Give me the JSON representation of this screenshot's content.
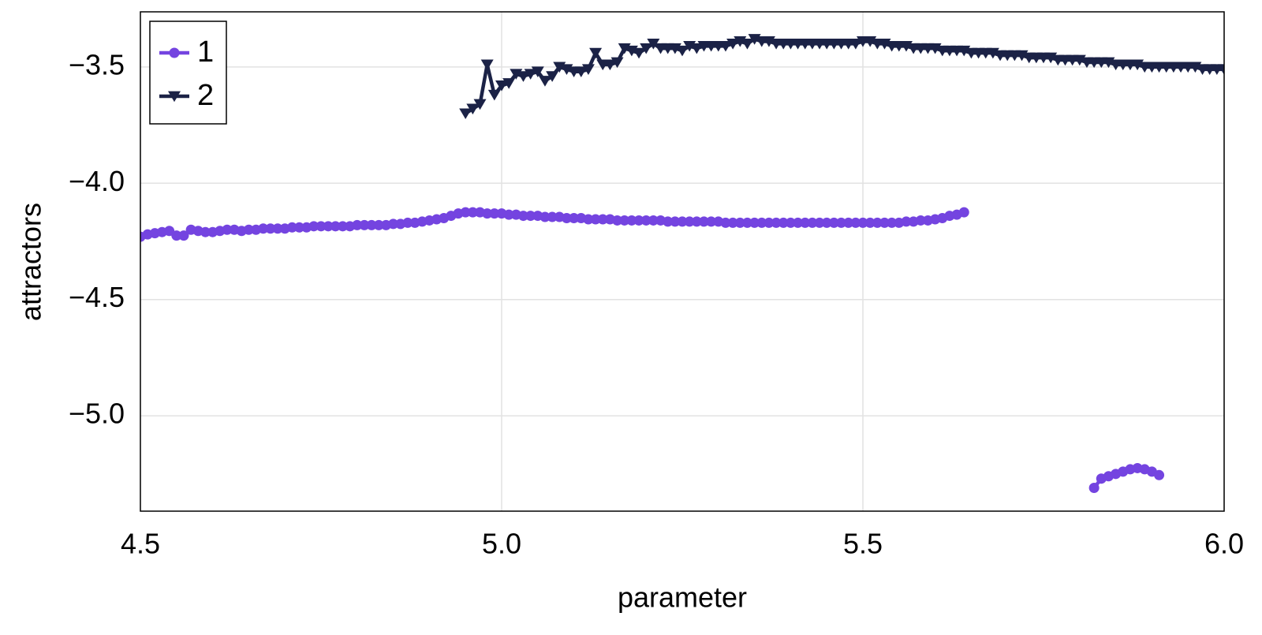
{
  "chart_data": {
    "type": "line",
    "x_label": "parameter",
    "y_label": "attractors",
    "x": [
      4.5,
      4.51,
      4.52,
      4.53,
      4.54,
      4.55,
      4.56,
      4.57,
      4.58,
      4.59,
      4.6,
      4.61,
      4.62,
      4.63,
      4.64,
      4.65,
      4.66,
      4.67,
      4.68,
      4.69,
      4.7,
      4.71,
      4.72,
      4.73,
      4.74,
      4.75,
      4.76,
      4.77,
      4.78,
      4.79,
      4.8,
      4.81,
      4.82,
      4.83,
      4.84,
      4.85,
      4.86,
      4.87,
      4.88,
      4.89,
      4.9,
      4.91,
      4.92,
      4.93,
      4.94,
      4.95,
      4.96,
      4.97,
      4.98,
      4.99,
      5.0,
      5.01,
      5.02,
      5.03,
      5.04,
      5.05,
      5.06,
      5.07,
      5.08,
      5.09,
      5.1,
      5.11,
      5.12,
      5.13,
      5.14,
      5.15,
      5.16,
      5.17,
      5.18,
      5.19,
      5.2,
      5.21,
      5.22,
      5.23,
      5.24,
      5.25,
      5.26,
      5.27,
      5.28,
      5.29,
      5.3,
      5.31,
      5.32,
      5.33,
      5.34,
      5.35,
      5.36,
      5.37,
      5.38,
      5.39,
      5.4,
      5.41,
      5.42,
      5.43,
      5.44,
      5.45,
      5.46,
      5.47,
      5.48,
      5.49,
      5.5,
      5.51,
      5.52,
      5.53,
      5.54,
      5.55,
      5.56,
      5.57,
      5.58,
      5.59,
      5.6,
      5.61,
      5.62,
      5.63,
      5.64,
      5.65,
      5.66,
      5.67,
      5.68,
      5.69,
      5.7,
      5.71,
      5.72,
      5.73,
      5.74,
      5.75,
      5.76,
      5.77,
      5.78,
      5.79,
      5.8,
      5.81,
      5.82,
      5.83,
      5.84,
      5.85,
      5.86,
      5.87,
      5.88,
      5.89,
      5.9,
      5.91,
      5.92,
      5.93,
      5.94,
      5.95,
      5.96,
      5.97,
      5.98,
      5.99,
      6.0
    ],
    "series": [
      {
        "name": "1",
        "color": "#7444e0",
        "marker": "circle",
        "values": [
          -4.23,
          -4.22,
          -4.215,
          -4.21,
          -4.205,
          -4.225,
          -4.225,
          -4.2,
          -4.205,
          -4.21,
          -4.21,
          -4.205,
          -4.2,
          -4.2,
          -4.205,
          -4.2,
          -4.2,
          -4.195,
          -4.195,
          -4.195,
          -4.195,
          -4.19,
          -4.19,
          -4.19,
          -4.185,
          -4.185,
          -4.185,
          -4.185,
          -4.185,
          -4.185,
          -4.18,
          -4.18,
          -4.18,
          -4.18,
          -4.18,
          -4.175,
          -4.175,
          -4.17,
          -4.17,
          -4.165,
          -4.16,
          -4.155,
          -4.15,
          -4.14,
          -4.13,
          -4.125,
          -4.125,
          -4.125,
          -4.13,
          -4.13,
          -4.13,
          -4.135,
          -4.135,
          -4.14,
          -4.14,
          -4.14,
          -4.145,
          -4.145,
          -4.145,
          -4.15,
          -4.15,
          -4.15,
          -4.155,
          -4.155,
          -4.155,
          -4.155,
          -4.16,
          -4.16,
          -4.16,
          -4.16,
          -4.16,
          -4.16,
          -4.16,
          -4.165,
          -4.165,
          -4.165,
          -4.165,
          -4.165,
          -4.165,
          -4.165,
          -4.165,
          -4.17,
          -4.17,
          -4.17,
          -4.17,
          -4.17,
          -4.17,
          -4.17,
          -4.17,
          -4.17,
          -4.17,
          -4.17,
          -4.17,
          -4.17,
          -4.17,
          -4.17,
          -4.17,
          -4.17,
          -4.17,
          -4.17,
          -4.17,
          -4.17,
          -4.17,
          -4.17,
          -4.17,
          -4.17,
          -4.165,
          -4.165,
          -4.16,
          -4.16,
          -4.155,
          -4.15,
          -4.14,
          -4.135,
          -4.125,
          null,
          null,
          null,
          null,
          null,
          null,
          null,
          null,
          null,
          null,
          null,
          null,
          null,
          null,
          null,
          null,
          null,
          -5.31,
          -5.27,
          -5.26,
          -5.25,
          -5.24,
          -5.23,
          -5.225,
          -5.23,
          -5.24,
          -5.255,
          null,
          null,
          null,
          null,
          null,
          null,
          null,
          null,
          null
        ]
      },
      {
        "name": "2",
        "color": "#1b2246",
        "marker": "triangle-down",
        "values": [
          null,
          null,
          null,
          null,
          null,
          null,
          null,
          null,
          null,
          null,
          null,
          null,
          null,
          null,
          null,
          null,
          null,
          null,
          null,
          null,
          null,
          null,
          null,
          null,
          null,
          null,
          null,
          null,
          null,
          null,
          null,
          null,
          null,
          null,
          null,
          null,
          null,
          null,
          null,
          null,
          null,
          null,
          null,
          null,
          null,
          -3.7,
          -3.68,
          -3.66,
          -3.49,
          -3.62,
          -3.58,
          -3.57,
          -3.53,
          -3.54,
          -3.53,
          -3.52,
          -3.56,
          -3.54,
          -3.5,
          -3.51,
          -3.52,
          -3.52,
          -3.51,
          -3.44,
          -3.49,
          -3.49,
          -3.48,
          -3.42,
          -3.43,
          -3.44,
          -3.42,
          -3.4,
          -3.42,
          -3.42,
          -3.42,
          -3.43,
          -3.41,
          -3.42,
          -3.41,
          -3.41,
          -3.41,
          -3.41,
          -3.4,
          -3.39,
          -3.4,
          -3.38,
          -3.39,
          -3.39,
          -3.4,
          -3.4,
          -3.4,
          -3.4,
          -3.4,
          -3.4,
          -3.4,
          -3.4,
          -3.4,
          -3.4,
          -3.4,
          -3.4,
          -3.39,
          -3.39,
          -3.4,
          -3.4,
          -3.41,
          -3.41,
          -3.41,
          -3.42,
          -3.42,
          -3.42,
          -3.42,
          -3.43,
          -3.43,
          -3.43,
          -3.43,
          -3.44,
          -3.44,
          -3.44,
          -3.44,
          -3.45,
          -3.45,
          -3.45,
          -3.45,
          -3.46,
          -3.46,
          -3.46,
          -3.46,
          -3.47,
          -3.47,
          -3.47,
          -3.47,
          -3.48,
          -3.48,
          -3.48,
          -3.48,
          -3.49,
          -3.49,
          -3.49,
          -3.49,
          -3.5,
          -3.5,
          -3.5,
          -3.5,
          -3.5,
          -3.5,
          -3.5,
          -3.5,
          -3.51,
          -3.51,
          -3.51,
          -3.51
        ]
      }
    ],
    "xlim": [
      4.5,
      6.0
    ],
    "ylim": [
      -5.41,
      -3.263
    ],
    "xticks": [
      4.5,
      {
        "value": 5,
        "label": "5.0"
      },
      5.5,
      {
        "value": 6,
        "label": "6.0"
      }
    ],
    "yticks": [
      {
        "value": -3.5,
        "label": "−3.5"
      },
      {
        "value": -4,
        "label": "−4.0"
      },
      {
        "value": -4.5,
        "label": "−4.5"
      },
      {
        "value": -5,
        "label": "−5.0"
      }
    ],
    "grid": true,
    "legend_position": "top-left"
  }
}
